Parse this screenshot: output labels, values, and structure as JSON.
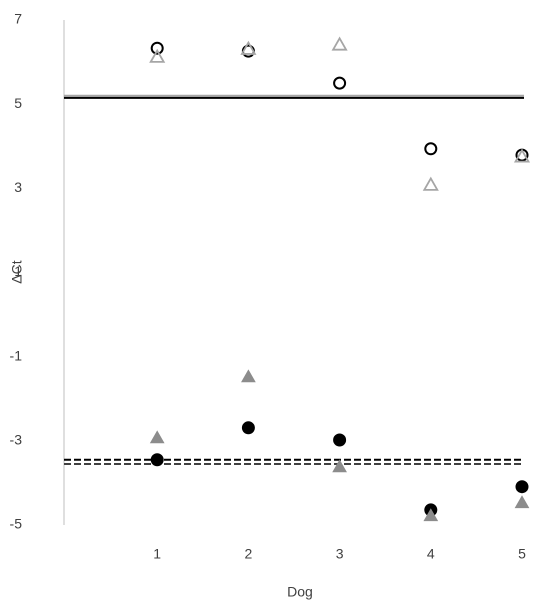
{
  "chart_data": {
    "type": "scatter",
    "x_label": "Dog",
    "y_label": "ΔCt",
    "x": [
      1,
      2,
      3,
      4,
      5
    ],
    "xlim": [
      0,
      5
    ],
    "xticks": [
      1,
      2,
      3,
      4,
      5
    ],
    "ylim": [
      -5,
      7
    ],
    "yticks": [
      -5,
      -3,
      -1,
      1,
      3,
      5,
      7
    ],
    "series": [
      {
        "color": "#000000",
        "marker": "circle",
        "filled": false,
        "values": [
          6.33,
          6.26,
          5.5,
          3.94,
          3.79
        ]
      },
      {
        "color": "#a6a6a6",
        "marker": "triangle",
        "filled": false,
        "values": [
          6.12,
          6.31,
          6.41,
          3.08,
          3.75
        ]
      },
      {
        "color": "#000000",
        "marker": "circle",
        "filled": true,
        "values": [
          -3.45,
          -2.69,
          -2.98,
          -4.64,
          -4.09
        ]
      },
      {
        "color": "#8c8c8c",
        "marker": "triangle",
        "filled": true,
        "values": [
          -2.93,
          -1.48,
          -3.62,
          -4.78,
          -4.47
        ]
      }
    ],
    "hlines": [
      {
        "value": 5.2,
        "color": "#a6a6a6",
        "dashed": false
      },
      {
        "value": 5.15,
        "color": "#000000",
        "dashed": false
      },
      {
        "value": -3.45,
        "color": "#000000",
        "dashed": true
      },
      {
        "value": -3.55,
        "color": "#404040",
        "dashed": true
      }
    ]
  }
}
